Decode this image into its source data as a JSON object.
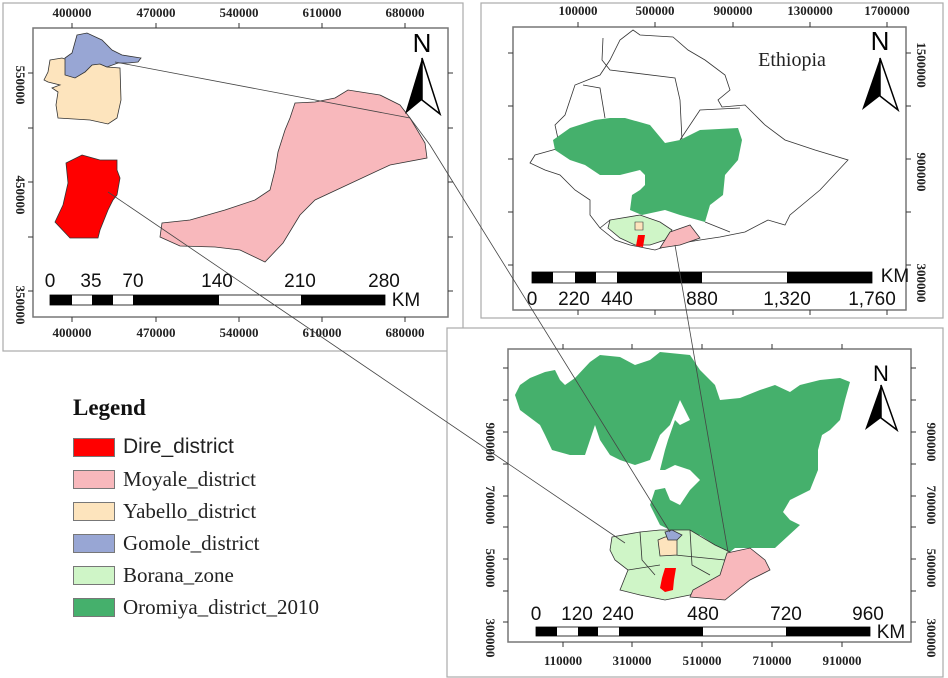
{
  "colors": {
    "dire": "#ff0000",
    "moyale": "#f8b8bc",
    "yabello": "#fde4bd",
    "gomole": "#98a6d4",
    "borana": "#cff5c7",
    "oromiya": "#45b06c"
  },
  "detail_map": {
    "x_ticks": [
      "400000",
      "470000",
      "540000",
      "610000",
      "680000"
    ],
    "y_ticks": [
      "550000",
      "450000",
      "350000"
    ],
    "north": "N",
    "scale_labels": [
      "0",
      "35",
      "70",
      "140",
      "210",
      "280"
    ],
    "scale_unit": "KM"
  },
  "ethiopia_map": {
    "title": "Ethiopia",
    "x_ticks": [
      "100000",
      "500000",
      "900000",
      "1300000",
      "1700000"
    ],
    "y_ticks": [
      "1500000",
      "900000",
      "300000"
    ],
    "north": "N",
    "scale_labels": [
      "0",
      "220",
      "440",
      "880",
      "1,320",
      "1,760"
    ],
    "scale_unit": "KM"
  },
  "oromiya_map": {
    "x_ticks": [
      "110000",
      "310000",
      "510000",
      "710000",
      "910000"
    ],
    "y_ticks": [
      "900000",
      "700000",
      "500000",
      "300000"
    ],
    "north": "N",
    "scale_labels": [
      "0",
      "120",
      "240",
      "480",
      "720",
      "960"
    ],
    "scale_unit": "KM"
  },
  "legend": {
    "title": "Legend",
    "items": [
      {
        "label": "Dire_district",
        "color": "#ff0000"
      },
      {
        "label": "Moyale_district",
        "color": "#f8b8bc"
      },
      {
        "label": "Yabello_district",
        "color": "#fde4bd"
      },
      {
        "label": "Gomole_district",
        "color": "#98a6d4"
      },
      {
        "label": "Borana_zone",
        "color": "#cff5c7"
      },
      {
        "label": "Oromiya_district_2010",
        "color": "#45b06c"
      }
    ]
  }
}
